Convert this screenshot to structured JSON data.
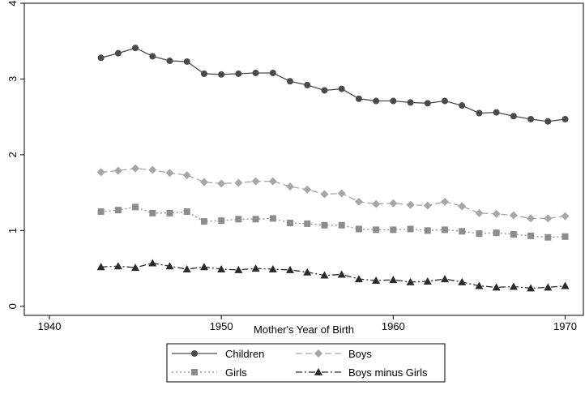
{
  "chart_data": {
    "type": "line",
    "xlabel": "Mother's Year of Birth",
    "ylabel": "",
    "xlim": [
      1939.2,
      1970.4
    ],
    "ylim": [
      -0.12,
      4.0
    ],
    "xticks": [
      1940,
      1950,
      1960,
      1970
    ],
    "yticks": [
      0,
      1,
      2,
      3,
      4
    ],
    "grid": false,
    "legend_position": "bottom",
    "x": [
      1943,
      1944,
      1945,
      1946,
      1947,
      1948,
      1949,
      1950,
      1951,
      1952,
      1953,
      1954,
      1955,
      1956,
      1957,
      1958,
      1959,
      1960,
      1961,
      1962,
      1963,
      1964,
      1965,
      1966,
      1967,
      1968,
      1969,
      1970
    ],
    "series": [
      {
        "name": "Children",
        "color": "#4a4a4a",
        "marker": "circle",
        "dash": "solid",
        "values": [
          3.28,
          3.34,
          3.41,
          3.3,
          3.24,
          3.23,
          3.07,
          3.06,
          3.07,
          3.08,
          3.08,
          2.97,
          2.92,
          2.85,
          2.87,
          2.74,
          2.71,
          2.71,
          2.69,
          2.68,
          2.71,
          2.65,
          2.55,
          2.56,
          2.51,
          2.47,
          2.44,
          2.47
        ]
      },
      {
        "name": "Boys",
        "color": "#a6a6a6",
        "marker": "diamond",
        "dash": "dashed",
        "values": [
          1.77,
          1.79,
          1.82,
          1.8,
          1.76,
          1.73,
          1.64,
          1.62,
          1.63,
          1.65,
          1.65,
          1.58,
          1.54,
          1.48,
          1.49,
          1.38,
          1.35,
          1.36,
          1.34,
          1.33,
          1.38,
          1.32,
          1.23,
          1.22,
          1.2,
          1.16,
          1.16,
          1.19
        ]
      },
      {
        "name": "Girls",
        "color": "#8c8c8c",
        "marker": "square",
        "dash": "dotted",
        "values": [
          1.25,
          1.27,
          1.31,
          1.23,
          1.23,
          1.25,
          1.12,
          1.13,
          1.15,
          1.15,
          1.16,
          1.1,
          1.09,
          1.07,
          1.07,
          1.02,
          1.01,
          1.01,
          1.02,
          1.0,
          1.01,
          0.99,
          0.96,
          0.97,
          0.95,
          0.93,
          0.91,
          0.92
        ]
      },
      {
        "name": "Boys minus Girls",
        "color": "#2a2a2a",
        "marker": "triangle",
        "dash": "dashdot",
        "values": [
          0.52,
          0.53,
          0.51,
          0.57,
          0.53,
          0.49,
          0.52,
          0.49,
          0.48,
          0.5,
          0.49,
          0.48,
          0.45,
          0.41,
          0.42,
          0.36,
          0.34,
          0.35,
          0.32,
          0.33,
          0.36,
          0.32,
          0.27,
          0.25,
          0.26,
          0.24,
          0.25,
          0.27
        ]
      }
    ]
  }
}
